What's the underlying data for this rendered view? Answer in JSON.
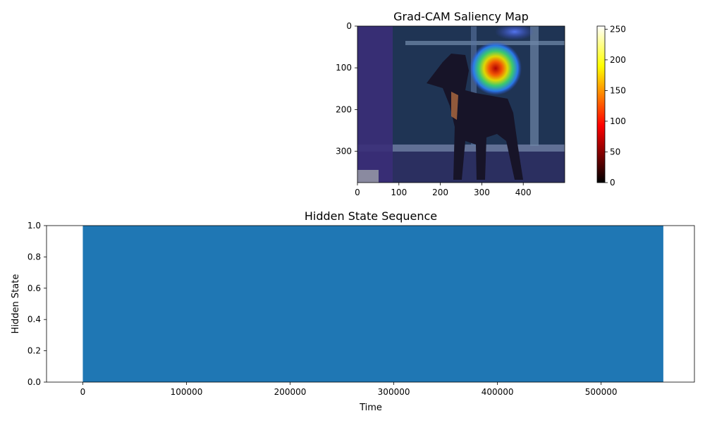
{
  "chart_data": [
    {
      "type": "heatmap",
      "title": "Grad-CAM Saliency Map",
      "description_kind": "image overlaid with saliency heatmap",
      "xlim": [
        0,
        500
      ],
      "ylim": [
        375,
        0
      ],
      "xticks": [
        0,
        100,
        200,
        300,
        400
      ],
      "yticks": [
        0,
        100,
        200,
        300
      ],
      "hotspot": {
        "x": 322,
        "y": 100,
        "peak_value": 150
      },
      "colorbar": {
        "colormap": "hot",
        "range": [
          0,
          255
        ],
        "ticks": [
          0,
          50,
          100,
          150,
          200,
          250
        ]
      }
    },
    {
      "type": "area",
      "title": "Hidden State Sequence",
      "xlabel": "Time",
      "ylabel": "Hidden State",
      "x": [
        0,
        560000
      ],
      "values": [
        1.0,
        1.0
      ],
      "xlim": [
        -35000,
        590000
      ],
      "ylim": [
        0.0,
        1.0
      ],
      "xticks": [
        0,
        100000,
        200000,
        300000,
        400000,
        500000
      ],
      "yticks": [
        "0.0",
        "0.2",
        "0.4",
        "0.6",
        "0.8",
        "1.0"
      ],
      "color": "#1f77b4",
      "grid": false
    }
  ]
}
